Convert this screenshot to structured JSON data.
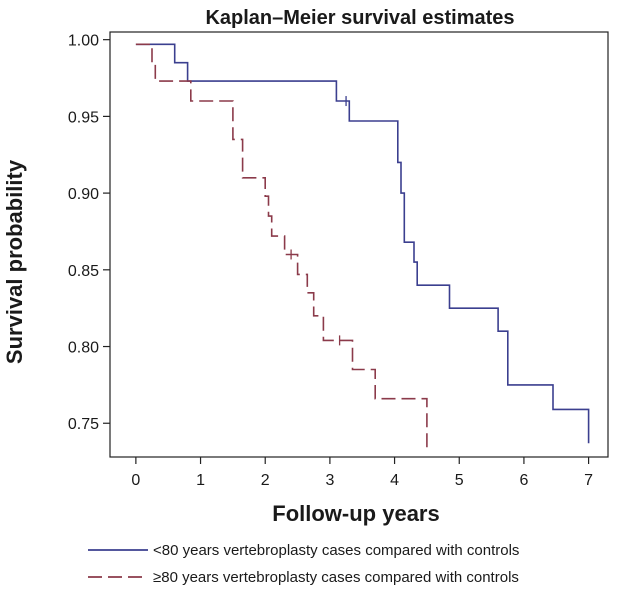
{
  "chart_data": {
    "type": "line",
    "title": "Kaplan–Meier survival estimates",
    "xlabel": "Follow-up years",
    "ylabel": "Survival probability",
    "xlim": [
      -0.4,
      7.3
    ],
    "ylim": [
      0.728,
      1.005
    ],
    "xticks": [
      0,
      1,
      2,
      3,
      4,
      5,
      6,
      7
    ],
    "xtick_labels": [
      "0",
      "1",
      "2",
      "3",
      "4",
      "5",
      "6",
      "7"
    ],
    "yticks": [
      1.0,
      0.95,
      0.9,
      0.85,
      0.8,
      0.75
    ],
    "ytick_labels": [
      "1.00",
      "0.95",
      "0.90",
      "0.85",
      "0.80",
      "0.75"
    ],
    "legend_position": "bottom",
    "grid": false,
    "series": [
      {
        "name": "<80 years vertebroplasty cases compared with controls",
        "color": "#3b3f8f",
        "dash": "solid",
        "step_points": [
          [
            0,
            0.997
          ],
          [
            0.6,
            0.985
          ],
          [
            0.8,
            0.973
          ],
          [
            3.1,
            0.96
          ],
          [
            3.3,
            0.947
          ],
          [
            4.05,
            0.92
          ],
          [
            4.1,
            0.9
          ],
          [
            4.15,
            0.868
          ],
          [
            4.3,
            0.855
          ],
          [
            4.35,
            0.84
          ],
          [
            4.85,
            0.825
          ],
          [
            5.6,
            0.81
          ],
          [
            5.75,
            0.775
          ],
          [
            6.45,
            0.759
          ],
          [
            7.0,
            0.737
          ]
        ],
        "censored": [
          [
            3.25,
            0.96
          ]
        ]
      },
      {
        "name": "≥80 years vertebroplasty cases compared with controls",
        "color": "#8b3a4a",
        "dash": "dashed",
        "step_points": [
          [
            0,
            0.997
          ],
          [
            0.25,
            0.985
          ],
          [
            0.3,
            0.973
          ],
          [
            0.85,
            0.96
          ],
          [
            1.5,
            0.935
          ],
          [
            1.65,
            0.91
          ],
          [
            2.0,
            0.898
          ],
          [
            2.05,
            0.885
          ],
          [
            2.1,
            0.872
          ],
          [
            2.3,
            0.86
          ],
          [
            2.5,
            0.847
          ],
          [
            2.65,
            0.835
          ],
          [
            2.75,
            0.82
          ],
          [
            2.9,
            0.804
          ],
          [
            3.35,
            0.785
          ],
          [
            3.7,
            0.766
          ],
          [
            4.5,
            0.734
          ]
        ],
        "censored": [
          [
            2.4,
            0.86
          ],
          [
            3.15,
            0.804
          ]
        ]
      }
    ]
  }
}
